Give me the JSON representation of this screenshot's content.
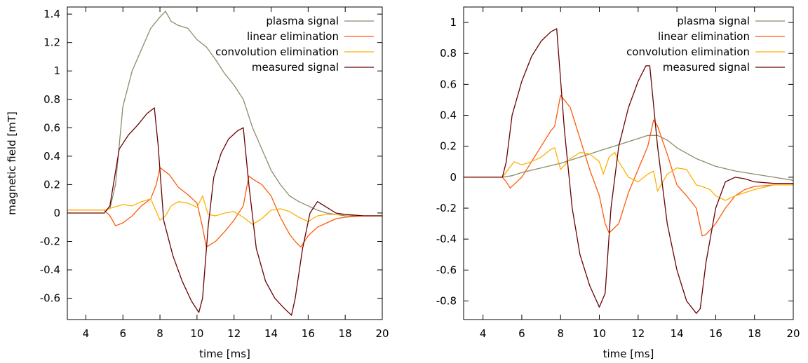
{
  "colors": {
    "plasma": "#8b8b6b",
    "linear": "#ff5a0a",
    "convolution": "#ffb000",
    "measured": "#6b0000"
  },
  "chart_data": [
    {
      "type": "line",
      "xlabel": "time [ms]",
      "ylabel": "magnetic field [mT]",
      "xlim": [
        3,
        20
      ],
      "ylim": [
        -0.75,
        1.45
      ],
      "xticks": [
        4,
        6,
        8,
        10,
        12,
        14,
        16,
        18,
        20
      ],
      "yticks": [
        -0.6,
        -0.4,
        -0.2,
        0,
        0.2,
        0.4,
        0.6,
        0.8,
        1,
        1.2,
        1.4
      ],
      "xtick_labels": [
        "4",
        "6",
        "8",
        "10",
        "12",
        "14",
        "16",
        "18",
        "20"
      ],
      "ytick_labels": [
        "-0.6",
        "-0.4",
        "-0.2",
        "0",
        "0.2",
        "0.4",
        "0.6",
        "0.8",
        "1",
        "1.2",
        "1.4"
      ],
      "legend_position": "top-right",
      "series": [
        {
          "name": "plasma signal",
          "color_key": "plasma",
          "x": [
            3,
            4,
            5,
            5.3,
            5.6,
            6,
            6.5,
            7,
            7.5,
            8,
            8.3,
            8.6,
            9,
            9.5,
            10,
            10.5,
            11,
            11.5,
            12,
            12.5,
            13,
            13.5,
            14,
            14.5,
            15,
            15.5,
            16,
            16.5,
            17,
            18,
            19,
            20
          ],
          "y": [
            0.02,
            0.02,
            0.02,
            0.03,
            0.2,
            0.75,
            1.0,
            1.15,
            1.3,
            1.38,
            1.42,
            1.35,
            1.32,
            1.3,
            1.22,
            1.17,
            1.08,
            0.98,
            0.9,
            0.8,
            0.6,
            0.45,
            0.3,
            0.2,
            0.12,
            0.08,
            0.05,
            0.02,
            0,
            -0.02,
            -0.02,
            -0.02
          ]
        },
        {
          "name": "linear elimination",
          "color_key": "linear",
          "x": [
            3,
            4,
            5,
            5.3,
            5.6,
            6,
            6.5,
            7,
            7.5,
            7.8,
            8,
            8.5,
            9,
            9.5,
            10,
            10.3,
            10.5,
            11,
            11.5,
            12,
            12.5,
            12.8,
            13,
            13.5,
            14,
            14.5,
            15,
            15.3,
            15.6,
            16,
            16.5,
            17,
            17.5,
            18,
            19,
            20
          ],
          "y": [
            0.02,
            0.02,
            0.02,
            -0.02,
            -0.09,
            -0.07,
            -0.02,
            0.05,
            0.1,
            0.2,
            0.32,
            0.27,
            0.18,
            0.13,
            0.07,
            -0.1,
            -0.24,
            -0.2,
            -0.13,
            -0.05,
            0.05,
            0.26,
            0.24,
            0.2,
            0.12,
            -0.03,
            -0.15,
            -0.2,
            -0.24,
            -0.16,
            -0.1,
            -0.07,
            -0.04,
            -0.03,
            -0.02,
            -0.02
          ]
        },
        {
          "name": "convolution elimination",
          "color_key": "convolution",
          "x": [
            3,
            4,
            5,
            5.5,
            6,
            6.5,
            7,
            7.5,
            8,
            8.3,
            8.6,
            9,
            9.5,
            10,
            10.3,
            10.6,
            11,
            11.5,
            12,
            12.5,
            13,
            13.5,
            14,
            14.5,
            15,
            15.5,
            16,
            16.5,
            17,
            18,
            19,
            20
          ],
          "y": [
            0.02,
            0.02,
            0.02,
            0.04,
            0.06,
            0.05,
            0.08,
            0.1,
            -0.05,
            -0.02,
            0.05,
            0.08,
            0.07,
            0.04,
            0.12,
            -0.01,
            -0.02,
            0.0,
            0.01,
            -0.03,
            -0.08,
            -0.04,
            0.02,
            0.03,
            0.01,
            -0.03,
            -0.06,
            -0.02,
            -0.01,
            -0.01,
            -0.02,
            -0.02
          ]
        },
        {
          "name": "measured signal",
          "color_key": "measured",
          "x": [
            3,
            4,
            5,
            5.3,
            5.8,
            6.3,
            6.8,
            7.3,
            7.7,
            7.9,
            8.2,
            8.7,
            9.2,
            9.7,
            10.1,
            10.3,
            10.6,
            10.9,
            11.3,
            11.7,
            12.2,
            12.5,
            12.8,
            13.2,
            13.7,
            14.2,
            14.7,
            15.1,
            15.3,
            15.7,
            16.1,
            16.5,
            17,
            17.5,
            18,
            19,
            20
          ],
          "y": [
            0.0,
            0.0,
            0.0,
            0.05,
            0.45,
            0.55,
            0.62,
            0.7,
            0.74,
            0.48,
            -0.05,
            -0.3,
            -0.48,
            -0.62,
            -0.7,
            -0.6,
            -0.1,
            0.25,
            0.42,
            0.52,
            0.58,
            0.6,
            0.2,
            -0.25,
            -0.48,
            -0.6,
            -0.67,
            -0.72,
            -0.6,
            -0.25,
            0.0,
            0.08,
            0.04,
            0.0,
            -0.01,
            -0.02,
            -0.02
          ]
        }
      ]
    },
    {
      "type": "line",
      "xlabel": "time [ms]",
      "ylabel": "",
      "xlim": [
        3,
        20
      ],
      "ylim": [
        -0.92,
        1.1
      ],
      "xticks": [
        4,
        6,
        8,
        10,
        12,
        14,
        16,
        18,
        20
      ],
      "yticks": [
        -0.8,
        -0.6,
        -0.4,
        -0.2,
        0,
        0.2,
        0.4,
        0.6,
        0.8,
        1
      ],
      "xtick_labels": [
        "4",
        "6",
        "8",
        "10",
        "12",
        "14",
        "16",
        "18",
        "20"
      ],
      "ytick_labels": [
        "-0.8",
        "-0.6",
        "-0.4",
        "-0.2",
        "0",
        "0.2",
        "0.4",
        "0.6",
        "0.8",
        "1"
      ],
      "legend_position": "top-right",
      "series": [
        {
          "name": "plasma signal",
          "color_key": "plasma",
          "x": [
            3,
            4,
            5,
            5.5,
            6,
            7,
            8,
            9,
            10,
            11,
            12,
            12.5,
            13,
            13.5,
            14,
            15,
            16,
            17,
            18,
            19,
            20
          ],
          "y": [
            0,
            0,
            0,
            0.01,
            0.03,
            0.06,
            0.09,
            0.13,
            0.17,
            0.21,
            0.25,
            0.27,
            0.27,
            0.24,
            0.19,
            0.12,
            0.07,
            0.04,
            0.02,
            0.0,
            -0.02
          ]
        },
        {
          "name": "linear elimination",
          "color_key": "linear",
          "x": [
            3,
            4,
            5,
            5.2,
            5.4,
            6,
            6.5,
            7,
            7.5,
            7.7,
            8,
            8.5,
            9,
            9.5,
            10,
            10.3,
            10.5,
            11,
            11.5,
            12,
            12.5,
            12.8,
            13,
            13.5,
            14,
            14.5,
            15,
            15.3,
            15.5,
            16,
            16.5,
            17,
            17.5,
            18,
            19,
            20
          ],
          "y": [
            0,
            0,
            0,
            -0.03,
            -0.07,
            0.0,
            0.1,
            0.2,
            0.3,
            0.33,
            0.53,
            0.45,
            0.25,
            0.05,
            -0.12,
            -0.3,
            -0.36,
            -0.3,
            -0.1,
            0.05,
            0.2,
            0.37,
            0.33,
            0.15,
            -0.05,
            -0.12,
            -0.2,
            -0.38,
            -0.37,
            -0.3,
            -0.2,
            -0.12,
            -0.08,
            -0.06,
            -0.05,
            -0.05
          ]
        },
        {
          "name": "convolution elimination",
          "color_key": "convolution",
          "x": [
            3,
            4,
            5,
            5.3,
            5.6,
            6,
            6.5,
            7,
            7.5,
            7.7,
            8,
            8.5,
            9,
            9.5,
            10,
            10.2,
            10.5,
            10.8,
            11,
            11.5,
            12,
            12.5,
            12.8,
            13,
            13.5,
            14,
            14.5,
            15,
            15.3,
            15.7,
            16,
            16.5,
            17,
            18,
            19,
            20
          ],
          "y": [
            0,
            0,
            0,
            0.05,
            0.1,
            0.08,
            0.1,
            0.13,
            0.18,
            0.19,
            0.05,
            0.12,
            0.16,
            0.15,
            0.1,
            0.02,
            0.13,
            0.16,
            0.1,
            0.0,
            -0.03,
            0.02,
            0.04,
            -0.09,
            0.02,
            0.06,
            0.05,
            -0.05,
            -0.06,
            -0.08,
            -0.12,
            -0.15,
            -0.12,
            -0.08,
            -0.05,
            -0.05
          ]
        },
        {
          "name": "measured signal",
          "color_key": "measured",
          "x": [
            3,
            4,
            5,
            5.2,
            5.5,
            6,
            6.5,
            7,
            7.5,
            7.8,
            8.2,
            8.6,
            9,
            9.5,
            10,
            10.3,
            10.6,
            11,
            11.5,
            12,
            12.4,
            12.6,
            13,
            13.5,
            14,
            14.5,
            15,
            15.2,
            15.5,
            16,
            16.5,
            17,
            17.5,
            18,
            19,
            20
          ],
          "y": [
            0,
            0,
            0,
            0.1,
            0.4,
            0.62,
            0.78,
            0.88,
            0.94,
            0.96,
            0.3,
            -0.2,
            -0.5,
            -0.7,
            -0.84,
            -0.75,
            -0.2,
            0.2,
            0.45,
            0.62,
            0.72,
            0.72,
            0.2,
            -0.3,
            -0.6,
            -0.8,
            -0.88,
            -0.85,
            -0.55,
            -0.2,
            -0.03,
            0.0,
            -0.01,
            -0.03,
            -0.04,
            -0.04
          ]
        }
      ]
    }
  ]
}
